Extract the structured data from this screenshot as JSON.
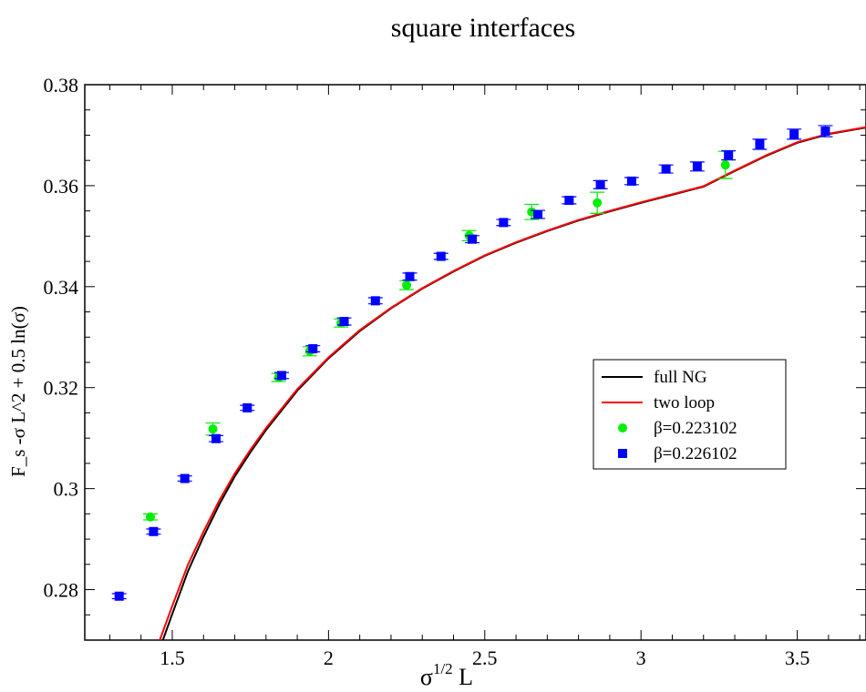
{
  "chart_data": {
    "type": "scatter",
    "title": "square interfaces",
    "xlabel_base": "σ",
    "xlabel_sup": "1/2",
    "xlabel_tail": " L",
    "ylabel": "F_s -σ L^2 + 0.5 ln(σ)",
    "xlim": [
      1.22,
      3.72
    ],
    "ylim": [
      0.27,
      0.38
    ],
    "x_ticks": [
      1.5,
      2,
      2.5,
      3,
      3.5
    ],
    "x_tick_labels": [
      "1.5",
      "2",
      "2.5",
      "3",
      "3.5"
    ],
    "y_ticks": [
      0.28,
      0.3,
      0.32,
      0.34,
      0.36,
      0.38
    ],
    "y_tick_labels": [
      "0.28",
      "0.3",
      "0.32",
      "0.34",
      "0.36",
      "0.38"
    ],
    "grid": false,
    "legend_position": "right",
    "curves": [
      {
        "name": "full NG",
        "color": "#000000",
        "x": [
          1.47,
          1.5,
          1.55,
          1.6,
          1.65,
          1.7,
          1.75,
          1.8,
          1.9,
          2.0,
          2.1,
          2.2,
          2.3,
          2.4,
          2.5,
          2.6,
          2.7,
          2.8,
          2.9,
          3.0,
          3.1,
          3.2,
          3.3,
          3.4,
          3.5,
          3.6,
          3.72
        ],
        "y": [
          0.27,
          0.2752,
          0.2836,
          0.2905,
          0.2968,
          0.3024,
          0.3072,
          0.3116,
          0.3194,
          0.3258,
          0.3312,
          0.3357,
          0.3396,
          0.343,
          0.3461,
          0.3487,
          0.351,
          0.3531,
          0.3549,
          0.3566,
          0.3582,
          0.3598,
          0.3629,
          0.3659,
          0.3685,
          0.3702,
          0.3715
        ]
      },
      {
        "name": "two loop",
        "color": "#ff0000",
        "x": [
          1.46,
          1.5,
          1.55,
          1.6,
          1.65,
          1.7,
          1.75,
          1.8,
          1.9,
          2.0,
          2.1,
          2.2,
          2.3,
          2.4,
          2.5,
          2.6,
          2.7,
          2.8,
          2.9,
          3.0,
          3.1,
          3.2,
          3.3,
          3.4,
          3.5,
          3.6,
          3.72
        ],
        "y": [
          0.27,
          0.2768,
          0.2849,
          0.2915,
          0.2976,
          0.303,
          0.3077,
          0.312,
          0.3197,
          0.326,
          0.3314,
          0.3358,
          0.3397,
          0.3431,
          0.3462,
          0.3488,
          0.3511,
          0.3532,
          0.355,
          0.3567,
          0.3583,
          0.3599,
          0.363,
          0.366,
          0.3686,
          0.3703,
          0.3716
        ]
      }
    ],
    "series": [
      {
        "name": "β=0.223102",
        "color": "#00ee00",
        "marker": "circle",
        "x": [
          1.43,
          1.63,
          1.84,
          1.94,
          2.04,
          2.25,
          2.45,
          2.65,
          2.86,
          3.27
        ],
        "y": [
          0.2944,
          0.3118,
          0.322,
          0.3272,
          0.3328,
          0.3403,
          0.3501,
          0.3548,
          0.3566,
          0.3641
        ],
        "err": [
          0.0006,
          0.0012,
          0.0008,
          0.0009,
          0.0008,
          0.0009,
          0.001,
          0.0015,
          0.0021,
          0.0027
        ]
      },
      {
        "name": "β=0.226102",
        "color": "#0000ff",
        "marker": "square",
        "x": [
          1.33,
          1.44,
          1.54,
          1.64,
          1.74,
          1.85,
          1.95,
          2.05,
          2.15,
          2.26,
          2.36,
          2.46,
          2.56,
          2.67,
          2.77,
          2.87,
          2.97,
          3.08,
          3.18,
          3.28,
          3.38,
          3.49,
          3.59
        ],
        "y": [
          0.2787,
          0.2915,
          0.302,
          0.3099,
          0.316,
          0.3224,
          0.3277,
          0.3331,
          0.3372,
          0.342,
          0.346,
          0.3494,
          0.3527,
          0.3543,
          0.3571,
          0.3602,
          0.3609,
          0.3633,
          0.3638,
          0.366,
          0.3682,
          0.3702,
          0.3708
        ],
        "err": [
          0.0005,
          0.0005,
          0.0005,
          0.0006,
          0.0005,
          0.0006,
          0.0006,
          0.0007,
          0.0006,
          0.0007,
          0.0006,
          0.0007,
          0.0006,
          0.0008,
          0.0007,
          0.0008,
          0.0007,
          0.0008,
          0.0009,
          0.0009,
          0.001,
          0.001,
          0.0011
        ]
      }
    ]
  }
}
